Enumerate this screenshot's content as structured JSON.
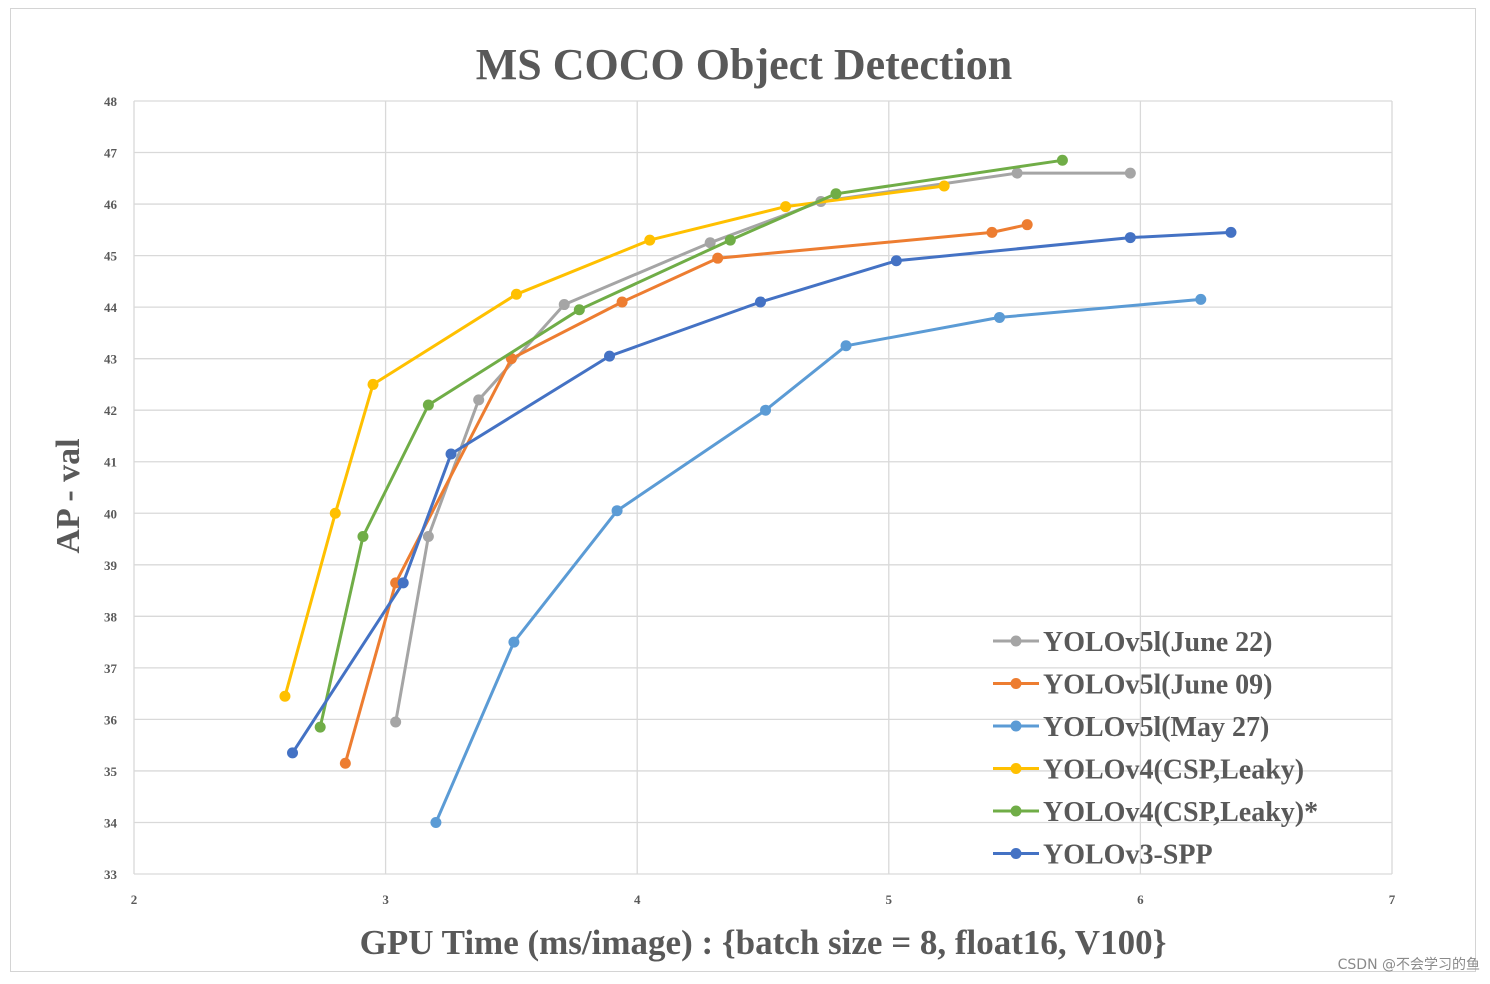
{
  "watermark": "CSDN @不会学习的鱼",
  "colors": {
    "grid": "#d9d9d9",
    "text": "#595959"
  },
  "chart_data": {
    "type": "line",
    "title": "MS COCO Object Detection",
    "xlabel": "GPU Time (ms/image) : {batch size = 8, float16, V100}",
    "ylabel": "AP - val",
    "xlim": [
      2,
      7
    ],
    "ylim": [
      33,
      48
    ],
    "xticks": [
      2,
      3,
      4,
      5,
      6,
      7
    ],
    "yticks": [
      33,
      34,
      35,
      36,
      37,
      38,
      39,
      40,
      41,
      42,
      43,
      44,
      45,
      46,
      47,
      48
    ],
    "grid": true,
    "legend_position": "bottom-right",
    "series": [
      {
        "name": "YOLOv5l(June 22)",
        "color": "#a5a5a5",
        "x": [
          3.04,
          3.17,
          3.37,
          3.71,
          4.29,
          4.73,
          5.51,
          5.96
        ],
        "y": [
          35.95,
          39.55,
          42.2,
          44.05,
          45.25,
          46.05,
          46.6,
          46.6
        ]
      },
      {
        "name": "YOLOv5l(June 09)",
        "color": "#ed7d31",
        "x": [
          2.84,
          3.04,
          3.5,
          3.94,
          4.32,
          5.41,
          5.55
        ],
        "y": [
          35.15,
          38.65,
          43.0,
          44.1,
          44.95,
          45.45,
          45.6
        ]
      },
      {
        "name": "YOLOv5l(May 27)",
        "color": "#5b9bd5",
        "x": [
          3.2,
          3.51,
          3.92,
          4.51,
          4.83,
          5.44,
          6.24
        ],
        "y": [
          34.0,
          37.5,
          40.05,
          42.0,
          43.25,
          43.8,
          44.15
        ]
      },
      {
        "name": "YOLOv4(CSP,Leaky)",
        "color": "#ffc000",
        "x": [
          2.6,
          2.8,
          2.95,
          3.52,
          4.05,
          4.59,
          5.22
        ],
        "y": [
          36.45,
          40.0,
          42.5,
          44.25,
          45.3,
          45.95,
          46.35
        ]
      },
      {
        "name": "YOLOv4(CSP,Leaky)*",
        "color": "#70ad47",
        "x": [
          2.74,
          2.91,
          3.17,
          3.77,
          4.37,
          4.79,
          5.69
        ],
        "y": [
          35.85,
          39.55,
          42.1,
          43.95,
          45.3,
          46.2,
          46.85
        ]
      },
      {
        "name": "YOLOv3-SPP",
        "color": "#4472c4",
        "x": [
          2.63,
          3.07,
          3.26,
          3.89,
          4.49,
          5.03,
          5.96,
          6.36
        ],
        "y": [
          35.35,
          38.65,
          41.15,
          43.05,
          44.1,
          44.9,
          45.35,
          45.45
        ]
      }
    ]
  }
}
